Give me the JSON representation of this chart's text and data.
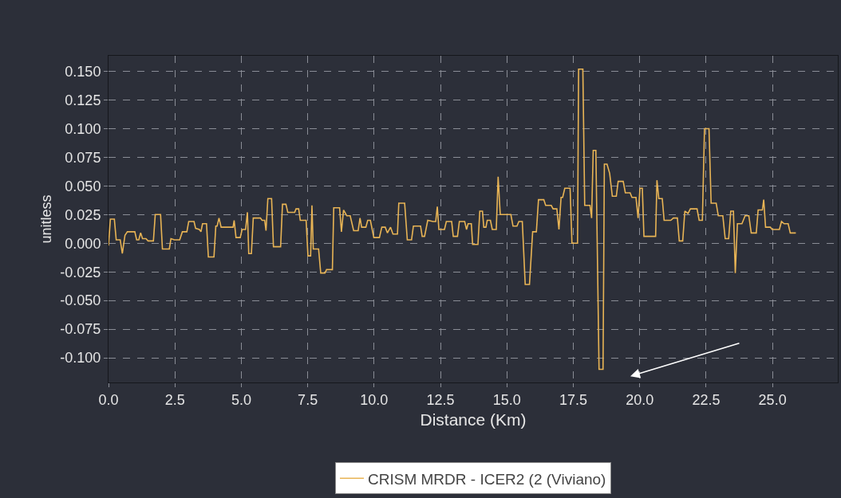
{
  "chart_data": {
    "type": "line",
    "xlabel": "Distance (Km)",
    "ylabel": "unitless",
    "xlim": [
      0,
      27.46
    ],
    "ylim": [
      -0.1215,
      0.1636
    ],
    "xticks": [
      {
        "value": 0,
        "label": "0.0"
      },
      {
        "value": 2.5,
        "label": "2.5"
      },
      {
        "value": 5,
        "label": "5.0"
      },
      {
        "value": 7.5,
        "label": "7.5"
      },
      {
        "value": 10,
        "label": "10.0"
      },
      {
        "value": 12.5,
        "label": "12.5"
      },
      {
        "value": 15,
        "label": "15.0"
      },
      {
        "value": 17.5,
        "label": "17.5"
      },
      {
        "value": 20,
        "label": "20.0"
      },
      {
        "value": 22.5,
        "label": "22.5"
      },
      {
        "value": 25,
        "label": "25.0"
      }
    ],
    "yticks": [
      {
        "value": 0.15,
        "label": "0.150"
      },
      {
        "value": 0.125,
        "label": "0.125"
      },
      {
        "value": 0.1,
        "label": "0.100"
      },
      {
        "value": 0.075,
        "label": "0.075"
      },
      {
        "value": 0.05,
        "label": "0.050"
      },
      {
        "value": 0.025,
        "label": "0.025"
      },
      {
        "value": 0,
        "label": "0.000"
      },
      {
        "value": -0.025,
        "label": "-0.025"
      },
      {
        "value": -0.05,
        "label": "-0.050"
      },
      {
        "value": -0.075,
        "label": "-0.075"
      },
      {
        "value": -0.1,
        "label": "-0.100"
      }
    ],
    "grid": true,
    "legend": "bottom",
    "marker": "none",
    "line_style": "solid",
    "series": [
      {
        "name": "CRISM MRDR - ICER2 (2 (Viviano)",
        "color": "#e8b455",
        "x": [
          0.0,
          0.07,
          0.22,
          0.29,
          0.44,
          0.52,
          0.62,
          0.71,
          0.99,
          1.06,
          1.14,
          1.21,
          1.28,
          1.41,
          1.49,
          1.69,
          1.76,
          1.96,
          2.03,
          2.29,
          2.35,
          2.48,
          2.68,
          2.78,
          2.95,
          3.02,
          3.22,
          3.28,
          3.42,
          3.48,
          3.54,
          3.69,
          3.76,
          3.97,
          4.04,
          4.09,
          4.16,
          4.24,
          4.69,
          4.73,
          4.8,
          4.96,
          5.03,
          5.16,
          5.23,
          5.28,
          5.38,
          5.45,
          5.72,
          5.78,
          5.88,
          5.93,
          6.0,
          6.14,
          6.21,
          6.48,
          6.55,
          6.68,
          6.75,
          7.01,
          7.06,
          7.16,
          7.22,
          7.44,
          7.51,
          7.61,
          7.66,
          7.71,
          7.91,
          7.99,
          8.15,
          8.21,
          8.43,
          8.48,
          8.7,
          8.77,
          8.85,
          8.97,
          9.1,
          9.23,
          9.4,
          9.47,
          9.53,
          9.69,
          9.76,
          9.86,
          9.99,
          10.2,
          10.29,
          10.42,
          10.5,
          10.62,
          10.71,
          10.88,
          10.93,
          11.15,
          11.25,
          11.41,
          11.48,
          11.75,
          11.81,
          11.9,
          12.02,
          12.22,
          12.32,
          12.38,
          12.44,
          12.65,
          12.72,
          12.92,
          12.98,
          13.14,
          13.21,
          13.41,
          13.48,
          13.54,
          13.66,
          13.71,
          13.91,
          13.98,
          14.08,
          14.13,
          14.21,
          14.26,
          14.38,
          14.45,
          14.6,
          14.67,
          14.75,
          15.15,
          15.23,
          15.38,
          15.45,
          15.58,
          15.69,
          15.85,
          15.97,
          16.11,
          16.19,
          16.39,
          16.46,
          16.67,
          16.74,
          16.88,
          16.96,
          17.04,
          17.1,
          17.18,
          17.38,
          17.45,
          17.66,
          17.7,
          17.86,
          17.93,
          18.13,
          18.19,
          18.25,
          18.35,
          18.47,
          18.62,
          18.67,
          18.77,
          18.87,
          18.97,
          19.12,
          19.19,
          19.38,
          19.46,
          19.64,
          19.71,
          19.86,
          19.94,
          20.01,
          20.1,
          20.16,
          20.6,
          20.65,
          20.72,
          20.85,
          20.92,
          21.17,
          21.27,
          21.42,
          21.49,
          21.62,
          21.7,
          21.82,
          21.91,
          22.16,
          22.24,
          22.36,
          22.44,
          22.61,
          22.69,
          22.88,
          22.96,
          23.13,
          23.22,
          23.35,
          23.43,
          23.53,
          23.6,
          23.68,
          23.85,
          23.97,
          24.11,
          24.2,
          24.39,
          24.46,
          24.62,
          24.67,
          24.74,
          24.92,
          24.99,
          25.26,
          25.34,
          25.44,
          25.59,
          25.67,
          25.88
        ],
        "values": [
          -0.002,
          0.021,
          0.021,
          0.003,
          0.003,
          -0.009,
          0.007,
          0.01,
          0.01,
          0.003,
          0.003,
          0.009,
          0.004,
          0.004,
          0.002,
          0.002,
          0.025,
          0.025,
          -0.005,
          -0.005,
          0.004,
          0.003,
          0.003,
          0.01,
          0.01,
          0.019,
          0.019,
          0.013,
          0.012,
          0.01,
          0.017,
          0.017,
          -0.012,
          -0.012,
          0.015,
          0.015,
          0.022,
          0.014,
          0.014,
          0.02,
          0.005,
          0.005,
          0.012,
          0.012,
          0.027,
          -0.009,
          -0.009,
          0.022,
          0.022,
          0.02,
          0.02,
          0.011,
          0.039,
          0.039,
          -0.003,
          -0.003,
          0.034,
          0.034,
          0.027,
          0.027,
          0.03,
          0.03,
          0.02,
          0.02,
          -0.011,
          -0.011,
          0.033,
          -0.005,
          -0.005,
          -0.026,
          -0.026,
          -0.023,
          -0.023,
          0.031,
          0.031,
          0.01,
          0.029,
          0.024,
          0.024,
          0.011,
          0.011,
          0.022,
          0.014,
          0.014,
          0.02,
          0.02,
          0.005,
          0.005,
          0.014,
          0.014,
          0.009,
          0.014,
          0.008,
          0.008,
          0.035,
          0.035,
          0.003,
          0.003,
          0.015,
          0.015,
          0.006,
          0.006,
          0.02,
          0.019,
          0.019,
          0.032,
          0.012,
          0.012,
          0.019,
          0.019,
          0.006,
          0.006,
          0.019,
          0.019,
          0.012,
          0.017,
          0.017,
          -0.001,
          -0.001,
          0.028,
          0.028,
          0.014,
          0.014,
          0.02,
          0.02,
          0.012,
          0.012,
          0.058,
          0.025,
          0.025,
          0.015,
          0.015,
          0.019,
          0.019,
          -0.036,
          -0.036,
          0.01,
          0.01,
          0.038,
          0.038,
          0.033,
          0.033,
          0.03,
          0.03,
          0.012,
          0.04,
          0.04,
          0.048,
          0.048,
          0.0,
          0.0,
          0.152,
          0.152,
          0.033,
          0.033,
          0.022,
          0.081,
          0.081,
          -0.11,
          -0.11,
          0.069,
          0.069,
          0.061,
          0.041,
          0.041,
          0.054,
          0.054,
          0.044,
          0.044,
          0.04,
          0.04,
          0.022,
          0.048,
          0.048,
          0.006,
          0.006,
          0.055,
          0.039,
          0.039,
          0.02,
          0.02,
          0.022,
          0.022,
          0.002,
          0.002,
          0.028,
          0.026,
          0.03,
          0.03,
          0.02,
          0.02,
          0.1,
          0.1,
          0.035,
          0.035,
          0.024,
          0.024,
          0.004,
          0.004,
          0.028,
          0.028,
          -0.026,
          0.017,
          0.017,
          0.024,
          0.024,
          0.009,
          0.009,
          0.029,
          0.029,
          0.038,
          0.014,
          0.014,
          0.012,
          0.012,
          0.019,
          0.017,
          0.017,
          0.009,
          0.009
        ]
      }
    ]
  }
}
